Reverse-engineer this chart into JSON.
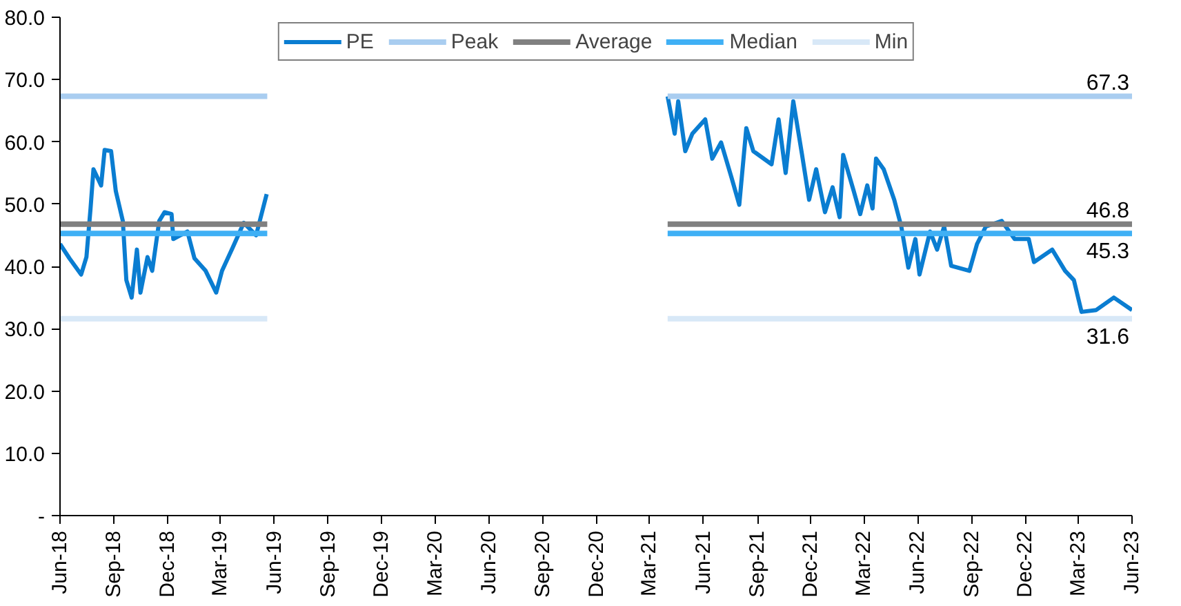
{
  "chart_data": {
    "type": "line",
    "legend": "top",
    "grid": false,
    "ylim": [
      0,
      80
    ],
    "yticks": [
      {
        "value": 0,
        "label": "-"
      },
      {
        "value": 10,
        "label": "10.0"
      },
      {
        "value": 20,
        "label": "20.0"
      },
      {
        "value": 30,
        "label": "30.0"
      },
      {
        "value": 40,
        "label": "40.0"
      },
      {
        "value": 50,
        "label": "50.0"
      },
      {
        "value": 60,
        "label": "60.0"
      },
      {
        "value": 70,
        "label": "70.0"
      },
      {
        "value": 80,
        "label": "80.0"
      }
    ],
    "xlim": [
      "2018-06-01",
      "2023-06-01"
    ],
    "xticks": [
      {
        "value": "2018-06-01",
        "label": "Jun-18"
      },
      {
        "value": "2018-09-01",
        "label": "Sep-18"
      },
      {
        "value": "2018-12-01",
        "label": "Dec-18"
      },
      {
        "value": "2019-03-01",
        "label": "Mar-19"
      },
      {
        "value": "2019-06-01",
        "label": "Jun-19"
      },
      {
        "value": "2019-09-01",
        "label": "Sep-19"
      },
      {
        "value": "2019-12-01",
        "label": "Dec-19"
      },
      {
        "value": "2020-03-01",
        "label": "Mar-20"
      },
      {
        "value": "2020-06-01",
        "label": "Jun-20"
      },
      {
        "value": "2020-09-01",
        "label": "Sep-20"
      },
      {
        "value": "2020-12-01",
        "label": "Dec-20"
      },
      {
        "value": "2021-03-01",
        "label": "Mar-21"
      },
      {
        "value": "2021-06-01",
        "label": "Jun-21"
      },
      {
        "value": "2021-09-01",
        "label": "Sep-21"
      },
      {
        "value": "2021-12-01",
        "label": "Dec-21"
      },
      {
        "value": "2022-03-01",
        "label": "Mar-22"
      },
      {
        "value": "2022-06-01",
        "label": "Jun-22"
      },
      {
        "value": "2022-09-01",
        "label": "Sep-22"
      },
      {
        "value": "2022-12-01",
        "label": "Dec-22"
      },
      {
        "value": "2023-03-01",
        "label": "Mar-23"
      },
      {
        "value": "2023-06-01",
        "label": "Jun-23"
      }
    ],
    "series": [
      {
        "name": "PE",
        "color": "#0a7dd1",
        "x": [
          "2018-06-01",
          "2018-06-17",
          "2018-07-07",
          "2018-07-16",
          "2018-07-23",
          "2018-07-28",
          "2018-08-10",
          "2018-08-16",
          "2018-08-27",
          "2018-09-04",
          "2018-09-16",
          "2018-09-22",
          "2018-10-01",
          "2018-10-10",
          "2018-10-16",
          "2018-10-28",
          "2018-11-05",
          "2018-11-17",
          "2018-11-26",
          "2018-12-08",
          "2018-12-11",
          "2019-01-04",
          "2019-01-16",
          "2019-02-04",
          "2019-02-22",
          "2019-03-04",
          "2019-03-22",
          "2019-04-10",
          "2019-05-01",
          "2019-05-19",
          "2020-01-01",
          "2021-04-01",
          "2021-04-13",
          "2021-04-19",
          "2021-05-01",
          "2021-05-13",
          "2021-06-04",
          "2021-06-16",
          "2021-07-01",
          "2021-07-19",
          "2021-08-01",
          "2021-08-13",
          "2021-08-25",
          "2021-09-25",
          "2021-10-07",
          "2021-10-19",
          "2021-11-01",
          "2021-11-16",
          "2021-11-28",
          "2021-12-10",
          "2021-12-25",
          "2022-01-07",
          "2022-01-19",
          "2022-01-25",
          "2022-02-12",
          "2022-02-23",
          "2022-03-07",
          "2022-03-16",
          "2022-03-22",
          "2022-04-04",
          "2022-04-22",
          "2022-05-04",
          "2022-05-16",
          "2022-05-28",
          "2022-06-04",
          "2022-06-22",
          "2022-07-04",
          "2022-07-16",
          "2022-07-28",
          "2022-08-28",
          "2022-09-10",
          "2022-09-25",
          "2022-10-22",
          "2022-11-13",
          "2022-12-07",
          "2022-12-16",
          "2023-01-16",
          "2023-02-07",
          "2023-02-22",
          "2023-03-07",
          "2023-04-01",
          "2023-05-01",
          "2023-06-01"
        ],
        "values": [
          43.6,
          41.3,
          38.7,
          41.5,
          49.3,
          55.6,
          53.0,
          58.7,
          58.5,
          52.1,
          47.3,
          37.8,
          35.0,
          42.7,
          35.8,
          41.5,
          39.3,
          47.3,
          48.7,
          48.4,
          44.4,
          45.6,
          41.3,
          39.3,
          35.8,
          39.3,
          43.0,
          47.0,
          45.0,
          51.6,
          null,
          67.3,
          61.3,
          66.5,
          58.5,
          61.3,
          63.6,
          57.3,
          59.9,
          54.2,
          49.9,
          62.2,
          58.5,
          56.4,
          63.6,
          55.0,
          66.5,
          57.9,
          50.7,
          55.6,
          48.7,
          52.7,
          47.9,
          57.9,
          52.1,
          48.4,
          53.0,
          49.3,
          57.3,
          55.6,
          50.7,
          46.4,
          39.8,
          44.4,
          38.7,
          45.6,
          42.7,
          46.4,
          40.1,
          39.3,
          43.6,
          46.4,
          47.3,
          44.4,
          44.4,
          40.7,
          42.7,
          39.3,
          37.8,
          32.7,
          33.0,
          35.0,
          33.0
        ]
      },
      {
        "name": "Peak",
        "color": "#a9cdf0",
        "x": [
          "2018-06-01",
          "2019-05-20",
          "2020-01-01",
          "2021-04-01",
          "2023-06-01"
        ],
        "values": [
          67.3,
          67.3,
          null,
          67.3,
          67.3
        ],
        "value_labels": [
          null,
          null,
          null,
          null,
          "67.3"
        ]
      },
      {
        "name": "Average",
        "color": "#808080",
        "x": [
          "2018-06-01",
          "2019-05-20",
          "2020-01-01",
          "2021-04-01",
          "2023-06-01"
        ],
        "values": [
          46.8,
          46.8,
          null,
          46.8,
          46.8
        ],
        "value_labels": [
          null,
          null,
          null,
          null,
          "46.8"
        ]
      },
      {
        "name": "Median",
        "color": "#3fb0f5",
        "x": [
          "2018-06-01",
          "2019-05-20",
          "2020-01-01",
          "2021-04-01",
          "2023-06-01"
        ],
        "values": [
          45.3,
          45.3,
          null,
          45.3,
          45.3
        ],
        "value_labels": [
          null,
          null,
          null,
          null,
          "45.3"
        ]
      },
      {
        "name": "Min",
        "color": "#d8e8f7",
        "x": [
          "2018-06-01",
          "2019-05-20",
          "2020-01-01",
          "2021-04-01",
          "2023-06-01"
        ],
        "values": [
          31.6,
          31.6,
          null,
          31.6,
          31.6
        ],
        "value_labels": [
          null,
          null,
          null,
          null,
          "31.6"
        ]
      }
    ]
  }
}
